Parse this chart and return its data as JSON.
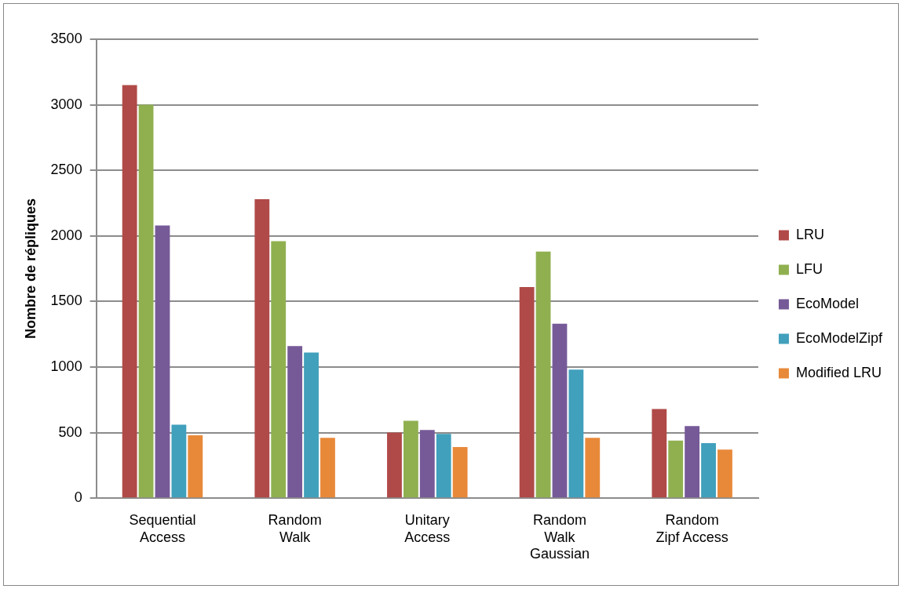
{
  "chart_data": {
    "type": "bar",
    "ylabel": "Nombre de répliques",
    "categories": [
      "Sequential Access",
      "Random Walk",
      "Unitary Access",
      "Random Walk Gaussian",
      "Random Zipf Access"
    ],
    "series": [
      {
        "name": "LRU",
        "color": "#b04a48",
        "values": [
          3150,
          2280,
          500,
          1610,
          680
        ]
      },
      {
        "name": "LFU",
        "color": "#90b050",
        "values": [
          3000,
          1960,
          590,
          1880,
          440
        ]
      },
      {
        "name": "EcoModel",
        "color": "#765a98",
        "values": [
          2080,
          1160,
          520,
          1330,
          550
        ]
      },
      {
        "name": "EcoModelZipf",
        "color": "#41a0bc",
        "values": [
          560,
          1110,
          490,
          980,
          420
        ]
      },
      {
        "name": "Modified LRU",
        "color": "#e8893a",
        "values": [
          480,
          460,
          390,
          460,
          370
        ]
      }
    ],
    "ylim": [
      0,
      3500
    ],
    "yticks": [
      0,
      500,
      1000,
      1500,
      2000,
      2500,
      3000,
      3500
    ],
    "grid": "y",
    "legend": "right"
  }
}
